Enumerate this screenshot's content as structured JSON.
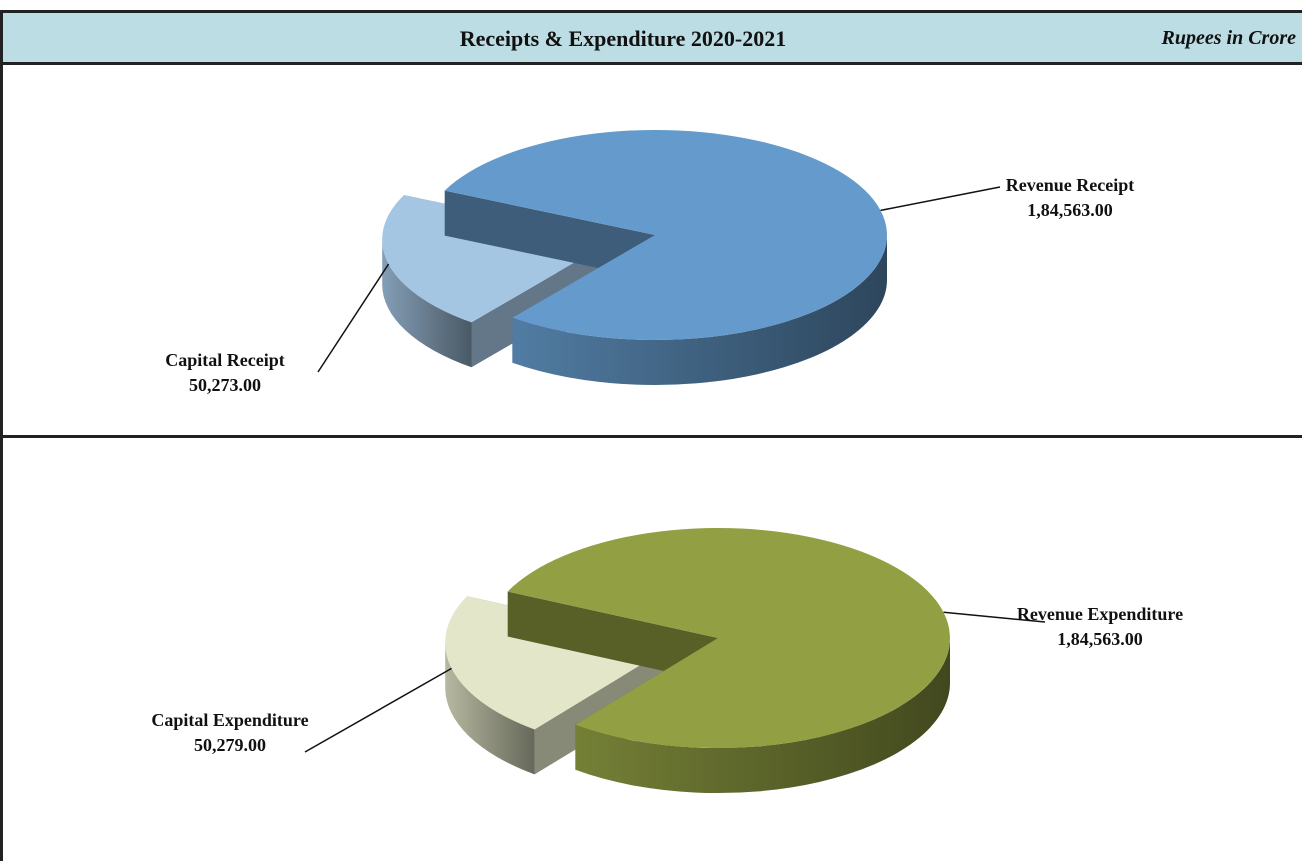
{
  "header": {
    "title": "Receipts & Expenditure 2020-2021",
    "unit": "Rupees in Crore"
  },
  "chart_data": [
    {
      "type": "pie",
      "categories": [
        "Revenue Receipt",
        "Capital Receipt"
      ],
      "values": [
        184563,
        50273
      ],
      "value_labels": [
        "1,84,563.00",
        "50,273.00"
      ],
      "colors": [
        "#659bcc",
        "#a5c6e3"
      ]
    },
    {
      "type": "pie",
      "categories": [
        "Revenue Expenditure",
        "Capital Expenditure"
      ],
      "values": [
        184563,
        50279
      ],
      "value_labels": [
        "1,84,563.00",
        "50,279.00"
      ],
      "colors": [
        "#92a043",
        "#e3e6c8"
      ]
    }
  ]
}
